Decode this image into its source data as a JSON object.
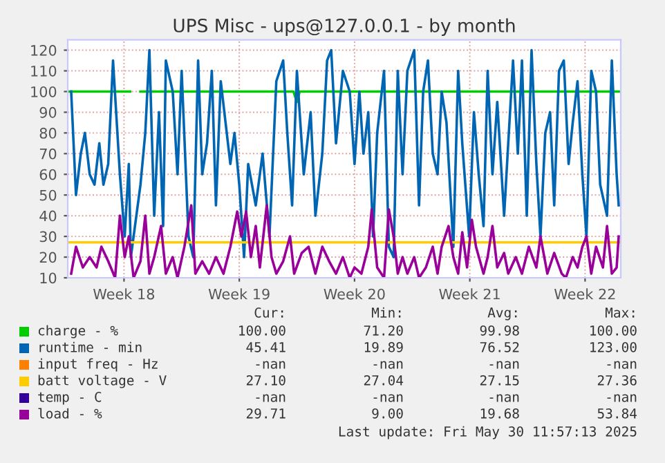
{
  "chart_data": {
    "type": "line",
    "title": "UPS Misc - ups@127.0.0.1 - by month",
    "xlim": [
      "2025-04-27T00:00",
      "2025-05-30T14:00"
    ],
    "xticks": [
      {
        "value": "2025-04-30T10:00",
        "label": "Week 18"
      },
      {
        "value": "2025-05-07T10:00",
        "label": "Week 19"
      },
      {
        "value": "2025-05-14T10:00",
        "label": "Week 20"
      },
      {
        "value": "2025-05-21T10:00",
        "label": "Week 21"
      },
      {
        "value": "2025-05-28T10:00",
        "label": "Week 22"
      }
    ],
    "ylim": [
      10,
      125
    ],
    "yticks": [
      10,
      20,
      30,
      40,
      50,
      60,
      70,
      80,
      90,
      100,
      110,
      120
    ],
    "grid": true,
    "legend": "bottom",
    "marker": "none",
    "line_style": "solid",
    "series": [
      {
        "name": "charge - %",
        "color": "#00cc00",
        "x": [
          "2025-04-27T00:00",
          "2025-04-30T19:00",
          "2025-05-01T02:00",
          "2025-05-01T10:00",
          "2025-05-10T17:00",
          "2025-05-10T22:00",
          "2025-05-11T02:00",
          "2025-05-30T12:00"
        ],
        "values": [
          100,
          100,
          null,
          100,
          100,
          95,
          100,
          100
        ]
      },
      {
        "name": "runtime - min",
        "color": "#0066b3",
        "x": [
          "2025-04-27T05:00",
          "2025-04-27T12:00",
          "2025-04-27T19:00",
          "2025-04-28T01:00",
          "2025-04-28T08:00",
          "2025-04-28T15:00",
          "2025-04-28T22:00",
          "2025-04-29T04:00",
          "2025-04-29T11:00",
          "2025-04-29T18:00",
          "2025-04-30T04:00",
          "2025-04-30T11:00",
          "2025-04-30T17:00",
          "2025-04-30T20:00",
          "2025-05-01T10:00",
          "2025-05-01T17:00",
          "2025-05-01T23:00",
          "2025-05-02T06:00",
          "2025-05-02T13:00",
          "2025-05-02T19:00",
          "2025-05-02T23:00",
          "2025-05-03T09:00",
          "2025-05-03T16:00",
          "2025-05-03T22:00",
          "2025-05-04T08:00",
          "2025-05-04T15:00",
          "2025-05-04T22:00",
          "2025-05-05T04:00",
          "2025-05-05T11:00",
          "2025-05-05T18:00",
          "2025-05-06T00:00",
          "2025-05-06T07:00",
          "2025-05-06T14:00",
          "2025-05-06T21:00",
          "2025-05-07T03:00",
          "2025-05-07T10:00",
          "2025-05-07T17:00",
          "2025-05-07T23:00",
          "2025-05-08T10:00",
          "2025-05-08T20:00",
          "2025-05-09T06:00",
          "2025-05-09T16:00",
          "2025-05-10T02:00",
          "2025-05-10T08:00",
          "2025-05-10T15:00",
          "2025-05-10T22:00",
          "2025-05-11T08:00",
          "2025-05-11T18:00",
          "2025-05-12T01:00",
          "2025-05-12T11:00",
          "2025-05-12T18:00",
          "2025-05-13T00:00",
          "2025-05-13T07:00",
          "2025-05-13T17:00",
          "2025-05-14T03:00",
          "2025-05-14T10:00",
          "2025-05-14T17:00",
          "2025-05-14T23:00",
          "2025-05-15T06:00",
          "2025-05-15T13:00",
          "2025-05-15T19:00",
          "2025-05-16T05:00",
          "2025-05-16T12:00",
          "2025-05-16T19:00",
          "2025-05-17T01:00",
          "2025-05-17T08:00",
          "2025-05-17T15:00",
          "2025-05-18T01:00",
          "2025-05-18T08:00",
          "2025-05-18T14:00",
          "2025-05-18T21:00",
          "2025-05-19T04:00",
          "2025-05-19T11:00",
          "2025-05-19T17:00",
          "2025-05-20T00:00",
          "2025-05-20T10:00",
          "2025-05-20T17:00",
          "2025-05-20T23:00",
          "2025-05-21T09:00",
          "2025-05-21T16:00",
          "2025-05-21T23:00",
          "2025-05-22T06:00",
          "2025-05-22T12:00",
          "2025-05-22T19:00",
          "2025-05-23T02:00",
          "2025-05-23T12:00",
          "2025-05-23T18:00",
          "2025-05-24T01:00",
          "2025-05-24T08:00",
          "2025-05-24T14:00",
          "2025-05-24T21:00",
          "2025-05-25T04:00",
          "2025-05-25T11:00",
          "2025-05-25T17:00",
          "2025-05-26T00:00",
          "2025-05-26T07:00",
          "2025-05-26T13:00",
          "2025-05-26T20:00",
          "2025-05-27T03:00",
          "2025-05-27T10:00",
          "2025-05-27T16:00",
          "2025-05-27T23:00",
          "2025-05-28T06:00",
          "2025-05-28T12:00",
          "2025-05-28T19:00",
          "2025-05-29T02:00",
          "2025-05-29T08:00",
          "2025-05-29T18:00",
          "2025-05-30T01:00",
          "2025-05-30T08:00",
          "2025-05-30T11:00"
        ],
        "values": [
          100,
          50,
          70,
          80,
          60,
          55,
          75,
          55,
          65,
          115,
          60,
          30,
          65,
          20,
          55,
          80,
          120,
          40,
          90,
          35,
          115,
          100,
          60,
          110,
          30,
          20,
          115,
          60,
          75,
          110,
          45,
          105,
          85,
          65,
          80,
          55,
          20,
          65,
          45,
          70,
          30,
          105,
          115,
          80,
          45,
          110,
          60,
          90,
          40,
          70,
          115,
          120,
          75,
          110,
          100,
          65,
          100,
          70,
          90,
          30,
          80,
          110,
          25,
          20,
          110,
          60,
          110,
          120,
          45,
          100,
          115,
          70,
          60,
          100,
          85,
          25,
          110,
          75,
          30,
          90,
          60,
          35,
          110,
          60,
          95,
          40,
          75,
          115,
          70,
          115,
          40,
          120,
          65,
          30,
          80,
          90,
          45,
          110,
          115,
          65,
          85,
          105,
          60,
          30,
          110,
          100,
          55,
          40,
          115,
          60,
          45
        ]
      },
      {
        "name": "input freq - Hz",
        "color": "#ff8000"
      },
      {
        "name": "batt voltage - V",
        "color": "#ffcc00",
        "x": [
          "2025-04-27T00:00",
          "2025-05-30T12:00"
        ],
        "values": [
          27.1,
          27.1
        ]
      },
      {
        "name": "temp - C",
        "color": "#330099"
      },
      {
        "name": "load - %",
        "color": "#990099",
        "x": [
          "2025-04-27T05:00",
          "2025-04-27T12:00",
          "2025-04-27T22:00",
          "2025-04-28T08:00",
          "2025-04-28T18:00",
          "2025-04-29T01:00",
          "2025-04-29T11:00",
          "2025-04-29T21:00",
          "2025-04-30T04:00",
          "2025-04-30T11:00",
          "2025-04-30T17:00",
          "2025-05-01T00:00",
          "2025-05-01T10:00",
          "2025-05-01T17:00",
          "2025-05-01T23:00",
          "2025-05-02T06:00",
          "2025-05-02T16:00",
          "2025-05-02T23:00",
          "2025-05-03T09:00",
          "2025-05-03T16:00",
          "2025-05-04T02:00",
          "2025-05-04T12:00",
          "2025-05-04T18:00",
          "2025-05-05T04:00",
          "2025-05-05T14:00",
          "2025-05-06T00:00",
          "2025-05-06T11:00",
          "2025-05-06T21:00",
          "2025-05-07T07:00",
          "2025-05-07T13:00",
          "2025-05-07T20:00",
          "2025-05-08T03:00",
          "2025-05-08T10:00",
          "2025-05-08T16:00",
          "2025-05-09T02:00",
          "2025-05-09T09:00",
          "2025-05-09T16:00",
          "2025-05-10T02:00",
          "2025-05-10T12:00",
          "2025-05-10T18:00",
          "2025-05-11T05:00",
          "2025-05-11T15:00",
          "2025-05-12T01:00",
          "2025-05-12T11:00",
          "2025-05-12T21:00",
          "2025-05-13T07:00",
          "2025-05-13T17:00",
          "2025-05-14T03:00",
          "2025-05-14T10:00",
          "2025-05-14T20:00",
          "2025-05-15T06:00",
          "2025-05-15T11:00",
          "2025-05-15T19:00",
          "2025-05-16T05:00",
          "2025-05-16T12:00",
          "2025-05-16T19:00",
          "2025-05-17T01:00",
          "2025-05-17T08:00",
          "2025-05-17T15:00",
          "2025-05-18T01:00",
          "2025-05-18T08:00",
          "2025-05-18T18:00",
          "2025-05-19T04:00",
          "2025-05-19T11:00",
          "2025-05-19T17:00",
          "2025-05-20T03:00",
          "2025-05-20T10:00",
          "2025-05-20T17:00",
          "2025-05-20T23:00",
          "2025-05-21T06:00",
          "2025-05-21T13:00",
          "2025-05-21T19:00",
          "2025-05-22T06:00",
          "2025-05-22T12:00",
          "2025-05-22T19:00",
          "2025-05-23T02:00",
          "2025-05-23T12:00",
          "2025-05-23T18:00",
          "2025-05-24T05:00",
          "2025-05-24T14:00",
          "2025-05-25T00:00",
          "2025-05-25T11:00",
          "2025-05-25T17:00",
          "2025-05-26T03:00",
          "2025-05-26T13:00",
          "2025-05-27T00:00",
          "2025-05-27T06:00",
          "2025-05-27T16:00",
          "2025-05-27T23:00",
          "2025-05-28T06:00",
          "2025-05-28T12:00",
          "2025-05-28T19:00",
          "2025-05-29T02:00",
          "2025-05-29T12:00",
          "2025-05-29T18:00",
          "2025-05-30T01:00",
          "2025-05-30T08:00",
          "2025-05-30T11:00"
        ],
        "values": [
          12,
          25,
          15,
          20,
          15,
          25,
          18,
          10,
          40,
          20,
          30,
          10,
          18,
          40,
          12,
          20,
          35,
          12,
          20,
          10,
          25,
          45,
          12,
          18,
          12,
          20,
          12,
          25,
          42,
          30,
          42,
          20,
          35,
          15,
          45,
          20,
          12,
          18,
          30,
          12,
          22,
          25,
          12,
          25,
          18,
          12,
          20,
          10,
          15,
          12,
          25,
          43,
          15,
          10,
          43,
          30,
          12,
          20,
          12,
          20,
          10,
          15,
          25,
          12,
          25,
          35,
          20,
          12,
          32,
          15,
          38,
          25,
          12,
          20,
          35,
          15,
          22,
          12,
          20,
          12,
          25,
          15,
          30,
          12,
          22,
          12,
          10,
          20,
          15,
          25,
          30,
          12,
          25,
          15,
          35,
          12,
          15,
          30
        ]
      }
    ],
    "annotations": [
      "Cur:",
      "Min:",
      "Avg:",
      "Max:",
      "100.00",
      "71.20",
      "99.98",
      "100.00",
      "45.41",
      "19.89",
      "76.52",
      "123.00",
      "-nan",
      "-nan",
      "-nan",
      "-nan",
      "27.10",
      "27.04",
      "27.15",
      "27.36",
      "-nan",
      "-nan",
      "-nan",
      "-nan",
      "29.71",
      "9.00",
      "19.68",
      "53.84",
      "Last update: Fri May 30 11:57:13 2025"
    ]
  }
}
